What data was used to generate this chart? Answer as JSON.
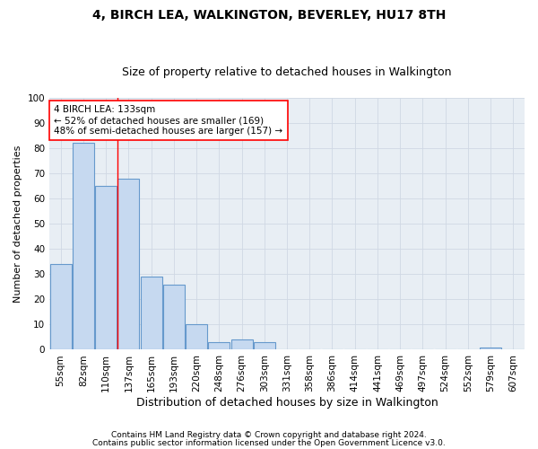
{
  "title": "4, BIRCH LEA, WALKINGTON, BEVERLEY, HU17 8TH",
  "subtitle": "Size of property relative to detached houses in Walkington",
  "xlabel": "Distribution of detached houses by size in Walkington",
  "ylabel": "Number of detached properties",
  "bar_labels": [
    "55sqm",
    "82sqm",
    "110sqm",
    "137sqm",
    "165sqm",
    "193sqm",
    "220sqm",
    "248sqm",
    "276sqm",
    "303sqm",
    "331sqm",
    "358sqm",
    "386sqm",
    "414sqm",
    "441sqm",
    "469sqm",
    "497sqm",
    "524sqm",
    "552sqm",
    "579sqm",
    "607sqm"
  ],
  "bar_values": [
    34,
    82,
    65,
    68,
    29,
    26,
    10,
    3,
    4,
    3,
    0,
    0,
    0,
    0,
    0,
    0,
    0,
    0,
    0,
    1,
    0
  ],
  "bar_color": "#c6d9f0",
  "bar_edge_color": "#6699cc",
  "grid_color": "#d0d8e4",
  "plot_bg_color": "#e8eef4",
  "vline_color": "red",
  "annotation_text": "4 BIRCH LEA: 133sqm\n← 52% of detached houses are smaller (169)\n48% of semi-detached houses are larger (157) →",
  "annotation_box_color": "white",
  "annotation_box_edge": "red",
  "ylim": [
    0,
    100
  ],
  "yticks": [
    0,
    10,
    20,
    30,
    40,
    50,
    60,
    70,
    80,
    90,
    100
  ],
  "footer1": "Contains HM Land Registry data © Crown copyright and database right 2024.",
  "footer2": "Contains public sector information licensed under the Open Government Licence v3.0.",
  "title_fontsize": 10,
  "subtitle_fontsize": 9,
  "xlabel_fontsize": 9,
  "ylabel_fontsize": 8,
  "tick_fontsize": 7.5,
  "annotation_fontsize": 7.5,
  "footer_fontsize": 6.5
}
